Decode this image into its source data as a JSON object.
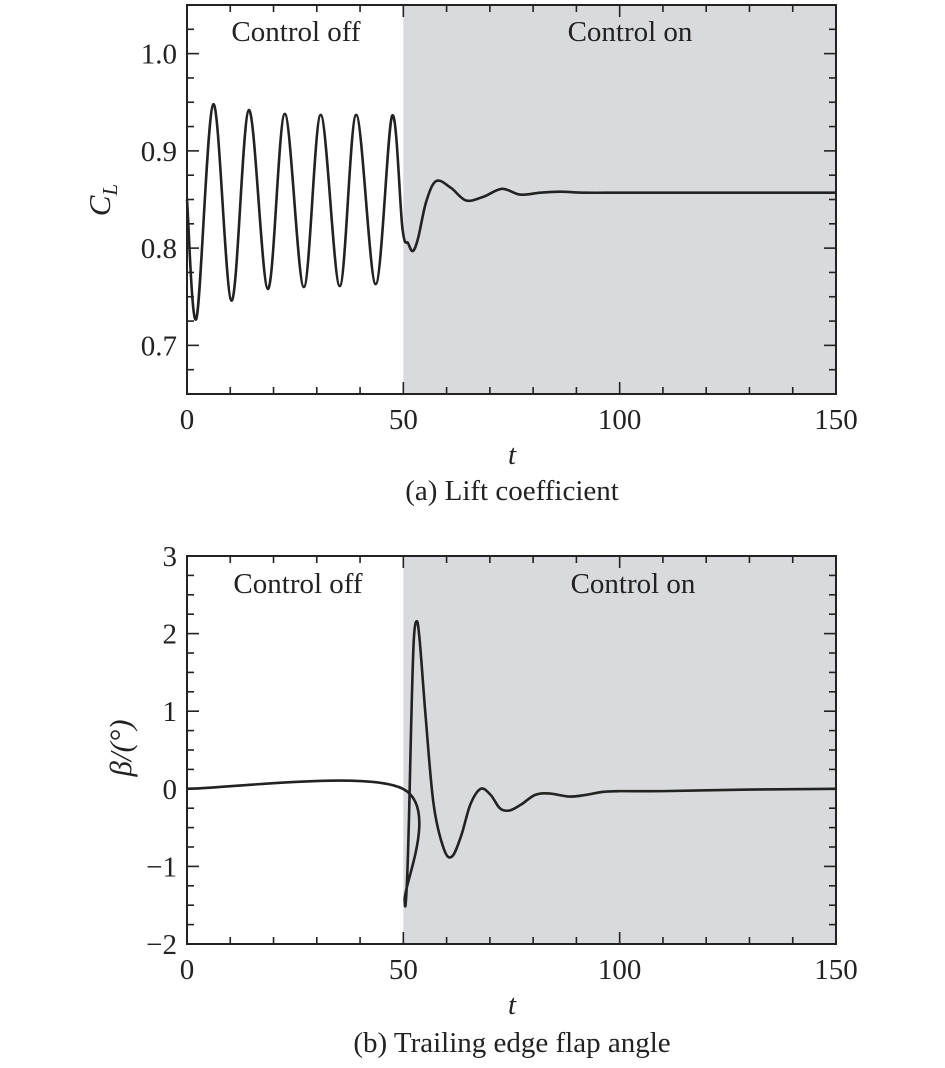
{
  "chart_data": [
    {
      "type": "line",
      "caption": "(a) Lift coefficient",
      "xlabel": "t",
      "ylabel_main": "C",
      "ylabel_sub": "L",
      "xlim": [
        0,
        150
      ],
      "ylim": [
        0.65,
        1.05
      ],
      "xticks": [
        0,
        50,
        100,
        150
      ],
      "xtick_labels": [
        "0",
        "50",
        "100",
        "150"
      ],
      "yticks": [
        0.7,
        0.8,
        0.9,
        1.0
      ],
      "ytick_labels": [
        "0.7",
        "0.8",
        "0.9",
        "1.0"
      ],
      "regions": [
        {
          "label": "Control off",
          "from": 0,
          "to": 50,
          "color": "#ffffff"
        },
        {
          "label": "Control on",
          "from": 50,
          "to": 150,
          "color": "#d9dadd"
        }
      ],
      "grid": false,
      "series": [
        {
          "line_color": "#222222",
          "x": [
            0,
            2.2,
            6.1,
            10.3,
            14.3,
            18.7,
            22.6,
            27.0,
            30.9,
            35.3,
            39.1,
            43.6,
            47.4,
            49.8,
            51.1,
            52.2,
            53.4,
            55.3,
            57.6,
            61.0,
            64.5,
            68.6,
            72.8,
            77.0,
            81.6,
            86.2,
            92.0,
            100,
            110,
            120,
            130,
            140,
            150
          ],
          "values": [
            0.85,
            0.728,
            0.948,
            0.746,
            0.942,
            0.758,
            0.938,
            0.76,
            0.937,
            0.761,
            0.937,
            0.763,
            0.936,
            0.82,
            0.805,
            0.797,
            0.81,
            0.848,
            0.869,
            0.862,
            0.849,
            0.853,
            0.861,
            0.855,
            0.857,
            0.858,
            0.857,
            0.857,
            0.857,
            0.857,
            0.857,
            0.857,
            0.857
          ]
        }
      ]
    },
    {
      "type": "line",
      "caption": "(b) Trailing edge flap angle",
      "xlabel": "t",
      "ylabel": "β/(°)",
      "xlim": [
        0,
        150
      ],
      "ylim": [
        -2,
        3
      ],
      "xticks": [
        0,
        50,
        100,
        150
      ],
      "xtick_labels": [
        "0",
        "50",
        "100",
        "150"
      ],
      "yticks": [
        -2,
        -1,
        0,
        1,
        2,
        3
      ],
      "ytick_labels": [
        "−2",
        "−1",
        "0",
        "1",
        "2",
        "3"
      ],
      "regions": [
        {
          "label": "Control off",
          "from": 0,
          "to": 50,
          "color": "#ffffff"
        },
        {
          "label": "Control on",
          "from": 50,
          "to": 150,
          "color": "#d9dadd"
        }
      ],
      "grid": false,
      "series": [
        {
          "line_color": "#222222",
          "x": [
            0,
            49.9,
            50.3,
            50.8,
            51.3,
            51.8,
            52.4,
            53.1,
            53.8,
            55.2,
            57.0,
            59.4,
            61.3,
            63.4,
            65.5,
            67.9,
            70.2,
            72.3,
            74.5,
            77.3,
            80.4,
            83.6,
            88.4,
            92.0,
            96.0,
            100,
            110,
            120,
            130,
            140,
            150
          ],
          "values": [
            0,
            0,
            -1.43,
            -1.25,
            -0.4,
            0.8,
            1.9,
            2.16,
            1.9,
            0.9,
            -0.2,
            -0.78,
            -0.87,
            -0.6,
            -0.2,
            0.0,
            -0.08,
            -0.25,
            -0.28,
            -0.2,
            -0.08,
            -0.06,
            -0.1,
            -0.08,
            -0.04,
            -0.03,
            -0.03,
            -0.02,
            -0.01,
            -0.005,
            0
          ]
        }
      ]
    }
  ]
}
